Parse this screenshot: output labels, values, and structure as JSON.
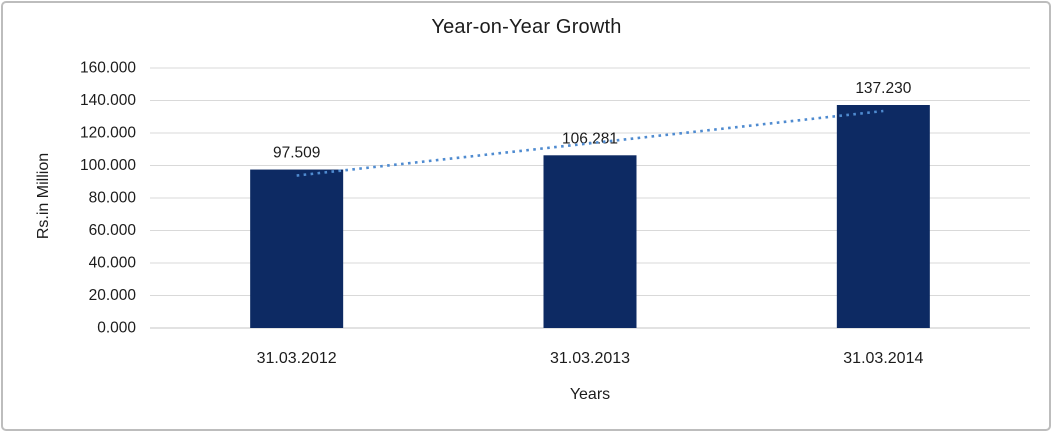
{
  "frame": {
    "border_color": "#bdbdbd",
    "background_color": "#ffffff"
  },
  "chart_data": {
    "type": "bar",
    "title": "Year-on-Year Growth",
    "xlabel": "Years",
    "ylabel": "Rs.in Million",
    "categories": [
      "31.03.2012",
      "31.03.2013",
      "31.03.2014"
    ],
    "values": [
      97.509,
      106.281,
      137.23
    ],
    "data_labels": [
      "97.509",
      "106.281",
      "137.230"
    ],
    "y_ticks": [
      "160.000",
      "140.000",
      "120.000",
      "100.000",
      "80.000",
      "60.000",
      "40.000",
      "20.000",
      "0.000"
    ],
    "ylim": [
      0,
      160
    ],
    "y_step": 20,
    "grid": true,
    "legend_position": "none",
    "bar_color": "#0d2a63",
    "gridline_color": "#d9d9d9",
    "axis_line_color": "#c6c6c6",
    "text_color": "#1c1c1c",
    "trendline": {
      "type": "linear",
      "style": "dotted",
      "color": "#4f8bd0"
    }
  }
}
